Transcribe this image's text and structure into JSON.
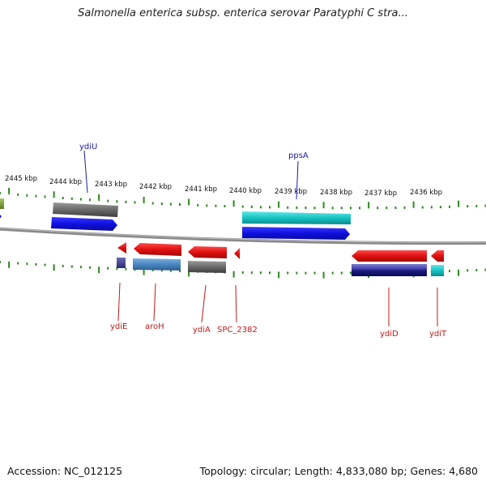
{
  "title": "Salmonella enterica subsp. enterica serovar Paratyphi C stra...",
  "footer": {
    "accession": "Accession: NC_012125",
    "topology": "Topology: circular; Length: 4,833,080 bp; Genes: 4,680"
  },
  "scale_labels": [
    "2445 kbp",
    "2444 kbp",
    "2443 kbp",
    "2442 kbp",
    "2441 kbp",
    "2440 kbp",
    "2439 kbp",
    "2438 kbp",
    "2437 kbp",
    "2436 kbp"
  ],
  "genes_top": [
    "ydiU",
    "ppsA"
  ],
  "genes_bottom": [
    "ydiE",
    "aroH",
    "ydiA",
    "SPC_2382",
    "ydiD",
    "ydiT"
  ],
  "colors": {
    "backbone": "#7a7a7a",
    "tick": "#2e8b1e",
    "forward_blue": "#1414e6",
    "gray_feature": "#6e6e6e",
    "cyan_feature": "#1fc8c8",
    "red_feature": "#e01010",
    "steelblue_feature": "#4a86c0",
    "navy_feature": "#1a1a7a",
    "olive_feature": "#7a9a30"
  }
}
